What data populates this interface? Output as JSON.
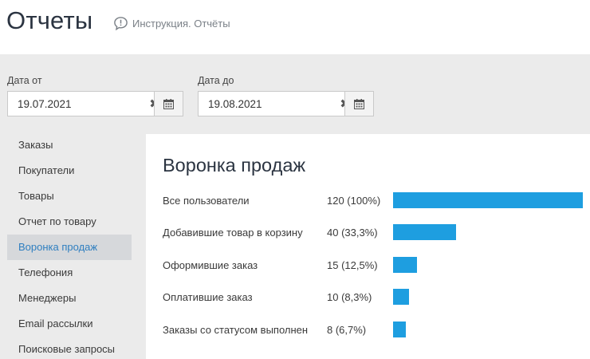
{
  "header": {
    "title": "Отчеты",
    "help_text": "Инструкция. Отчёты"
  },
  "filters": {
    "from_label": "Дата от",
    "from_value": "19.07.2021",
    "to_label": "Дата до",
    "to_value": "19.08.2021",
    "clear_glyph": "✖"
  },
  "sidebar": {
    "items": [
      {
        "label": "Заказы"
      },
      {
        "label": "Покупатели"
      },
      {
        "label": "Товары"
      },
      {
        "label": "Отчет по товару"
      },
      {
        "label": "Воронка продаж",
        "active": true
      },
      {
        "label": "Телефония"
      },
      {
        "label": "Менеджеры"
      },
      {
        "label": "Email рассылки"
      },
      {
        "label": "Поисковые запросы"
      }
    ]
  },
  "funnel": {
    "title": "Воронка продаж",
    "rows": [
      {
        "label": "Все пользователи",
        "value_text": "120 (100%)",
        "percent": 100
      },
      {
        "label": "Добавившие товар в корзину",
        "value_text": "40 (33,3%)",
        "percent": 33.3
      },
      {
        "label": "Оформившие заказ",
        "value_text": "15 (12,5%)",
        "percent": 12.5
      },
      {
        "label": "Оплатившие заказ",
        "value_text": "10 (8,3%)",
        "percent": 8.3
      },
      {
        "label": "Заказы со статусом выполнен",
        "value_text": "8 (6,7%)",
        "percent": 6.7
      }
    ]
  },
  "colors": {
    "bar": "#1e9ee0",
    "active_link": "#2f7fc0",
    "content_bg": "#ebebeb",
    "active_item_bg": "#d6d8db"
  },
  "icons": {
    "help": "speech-bubble-info-icon",
    "calendar": "calendar-icon",
    "clear": "clear-icon"
  }
}
